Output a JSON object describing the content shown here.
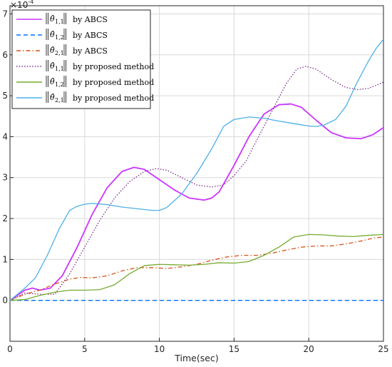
{
  "chart_data": {
    "type": "line",
    "xlabel": "Time(sec)",
    "ylabel": "",
    "exponent_label": "×10",
    "exponent_power": "-4",
    "xlim": [
      0,
      25
    ],
    "ylim": [
      -1,
      7.2
    ],
    "xticks": [
      0,
      5,
      10,
      15,
      20,
      25
    ],
    "yticks": [
      0,
      1,
      2,
      3,
      4,
      5,
      6,
      7
    ],
    "grid": true,
    "legend_position": "top-left",
    "series": [
      {
        "name_symbol": "θ̂",
        "name_sub": "1,1",
        "name_suffix": "by ABCS",
        "color": "#cc33ff",
        "style": "solid",
        "points": [
          [
            0,
            0
          ],
          [
            1,
            0.25
          ],
          [
            1.5,
            0.3
          ],
          [
            2,
            0.25
          ],
          [
            2.7,
            0.3
          ],
          [
            3.5,
            0.6
          ],
          [
            4.5,
            1.3
          ],
          [
            5.5,
            2.1
          ],
          [
            6.5,
            2.75
          ],
          [
            7.5,
            3.15
          ],
          [
            8.3,
            3.25
          ],
          [
            9,
            3.2
          ],
          [
            10,
            2.95
          ],
          [
            11,
            2.7
          ],
          [
            12,
            2.5
          ],
          [
            13,
            2.45
          ],
          [
            13.5,
            2.5
          ],
          [
            14,
            2.65
          ],
          [
            15,
            3.3
          ],
          [
            16,
            4.0
          ],
          [
            17,
            4.55
          ],
          [
            18,
            4.78
          ],
          [
            18.8,
            4.8
          ],
          [
            19.5,
            4.72
          ],
          [
            20.5,
            4.4
          ],
          [
            21.5,
            4.1
          ],
          [
            22.5,
            3.97
          ],
          [
            23.5,
            3.95
          ],
          [
            24.3,
            4.05
          ],
          [
            25,
            4.22
          ]
        ]
      },
      {
        "name_symbol": "θ̂",
        "name_sub": "1,2",
        "name_suffix": "by ABCS",
        "color": "#0072ff",
        "style": "dashed",
        "points": [
          [
            0,
            0
          ],
          [
            25,
            0
          ]
        ]
      },
      {
        "name_symbol": "θ̂",
        "name_sub": "2,1",
        "name_suffix": "by ABCS",
        "color": "#d95319",
        "style": "dashdot",
        "points": [
          [
            0,
            0
          ],
          [
            1,
            0.15
          ],
          [
            2,
            0.25
          ],
          [
            3,
            0.4
          ],
          [
            4,
            0.52
          ],
          [
            4.7,
            0.56
          ],
          [
            5.5,
            0.55
          ],
          [
            6.5,
            0.6
          ],
          [
            7.5,
            0.72
          ],
          [
            8.5,
            0.8
          ],
          [
            9.5,
            0.8
          ],
          [
            10.5,
            0.78
          ],
          [
            11.5,
            0.82
          ],
          [
            12.5,
            0.88
          ],
          [
            13.5,
            0.98
          ],
          [
            14.5,
            1.06
          ],
          [
            15.5,
            1.1
          ],
          [
            16.5,
            1.1
          ],
          [
            17.5,
            1.15
          ],
          [
            18.5,
            1.23
          ],
          [
            19.5,
            1.3
          ],
          [
            20.5,
            1.33
          ],
          [
            21.5,
            1.33
          ],
          [
            22.5,
            1.38
          ],
          [
            23.5,
            1.45
          ],
          [
            24.3,
            1.52
          ],
          [
            25,
            1.55
          ]
        ]
      },
      {
        "name_symbol": "θ̂",
        "name_sub": "1,1",
        "name_suffix": "by proposed method",
        "color": "#7e2f8e",
        "style": "dotted",
        "points": [
          [
            0,
            0
          ],
          [
            1,
            0.18
          ],
          [
            2,
            0.15
          ],
          [
            3,
            0.15
          ],
          [
            4,
            0.65
          ],
          [
            5,
            1.3
          ],
          [
            6,
            1.95
          ],
          [
            7,
            2.5
          ],
          [
            8,
            2.9
          ],
          [
            9,
            3.15
          ],
          [
            9.8,
            3.22
          ],
          [
            10.5,
            3.18
          ],
          [
            11.5,
            3.0
          ],
          [
            12.5,
            2.82
          ],
          [
            13.5,
            2.77
          ],
          [
            14.3,
            2.82
          ],
          [
            15,
            3.05
          ],
          [
            15.8,
            3.4
          ],
          [
            16.5,
            3.9
          ],
          [
            17.5,
            4.6
          ],
          [
            18.5,
            5.3
          ],
          [
            19.2,
            5.65
          ],
          [
            19.8,
            5.72
          ],
          [
            20.5,
            5.65
          ],
          [
            21.5,
            5.4
          ],
          [
            22.5,
            5.2
          ],
          [
            23.3,
            5.15
          ],
          [
            24,
            5.18
          ],
          [
            25,
            5.33
          ]
        ]
      },
      {
        "name_symbol": "θ̂",
        "name_sub": "1,2",
        "name_suffix": "by proposed method",
        "color": "#77ac30",
        "style": "solid",
        "points": [
          [
            0,
            0
          ],
          [
            1,
            0.02
          ],
          [
            2,
            0.12
          ],
          [
            3,
            0.2
          ],
          [
            4,
            0.25
          ],
          [
            5,
            0.25
          ],
          [
            6,
            0.26
          ],
          [
            7,
            0.38
          ],
          [
            8,
            0.65
          ],
          [
            9,
            0.85
          ],
          [
            10,
            0.88
          ],
          [
            11,
            0.87
          ],
          [
            12,
            0.86
          ],
          [
            13,
            0.88
          ],
          [
            14,
            0.92
          ],
          [
            15,
            0.91
          ],
          [
            16,
            0.95
          ],
          [
            17,
            1.1
          ],
          [
            18,
            1.3
          ],
          [
            19,
            1.55
          ],
          [
            20,
            1.61
          ],
          [
            21,
            1.6
          ],
          [
            22,
            1.57
          ],
          [
            23,
            1.56
          ],
          [
            24,
            1.59
          ],
          [
            25,
            1.61
          ]
        ]
      },
      {
        "name_symbol": "θ̂",
        "name_sub": "2,1",
        "name_suffix": "by proposed method",
        "color": "#4db0e8",
        "style": "solid",
        "points": [
          [
            0,
            0
          ],
          [
            0.5,
            0.15
          ],
          [
            1,
            0.3
          ],
          [
            1.7,
            0.55
          ],
          [
            2.5,
            1.1
          ],
          [
            3.3,
            1.75
          ],
          [
            4,
            2.2
          ],
          [
            4.5,
            2.3
          ],
          [
            5,
            2.35
          ],
          [
            5.5,
            2.37
          ],
          [
            6.5,
            2.34
          ],
          [
            7.5,
            2.28
          ],
          [
            8.5,
            2.24
          ],
          [
            9.5,
            2.2
          ],
          [
            10,
            2.2
          ],
          [
            10.5,
            2.27
          ],
          [
            11.5,
            2.6
          ],
          [
            12.5,
            3.1
          ],
          [
            13.5,
            3.7
          ],
          [
            14.3,
            4.25
          ],
          [
            15,
            4.42
          ],
          [
            16,
            4.48
          ],
          [
            17,
            4.45
          ],
          [
            18,
            4.38
          ],
          [
            19,
            4.32
          ],
          [
            20,
            4.26
          ],
          [
            20.5,
            4.25
          ],
          [
            21,
            4.28
          ],
          [
            21.8,
            4.42
          ],
          [
            22.5,
            4.75
          ],
          [
            23.2,
            5.3
          ],
          [
            24,
            5.85
          ],
          [
            24.5,
            6.15
          ],
          [
            25,
            6.38
          ]
        ]
      }
    ]
  }
}
